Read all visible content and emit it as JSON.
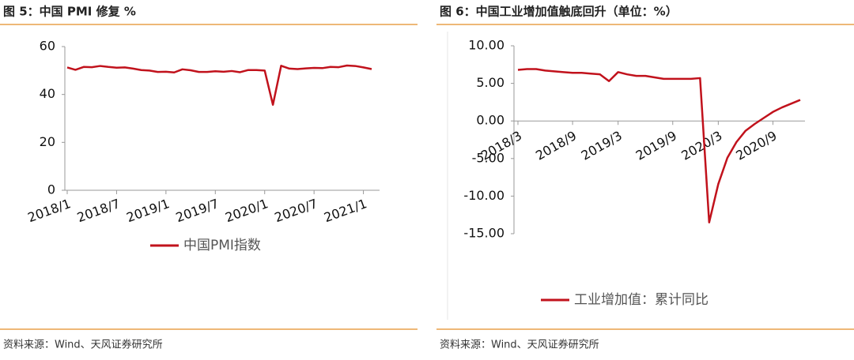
{
  "chart_data": [
    {
      "type": "line",
      "title": "图 5：中国 PMI 修复 %",
      "source": "资料来源：Wind、天风证券研究所",
      "categories": [
        "2018/1",
        null,
        null,
        null,
        null,
        null,
        "2018/7",
        null,
        null,
        null,
        null,
        null,
        "2019/1",
        null,
        null,
        null,
        null,
        null,
        "2019/7",
        null,
        null,
        null,
        null,
        null,
        "2020/1",
        null,
        null,
        null,
        null,
        null,
        "2020/7",
        null,
        null,
        null,
        null,
        null,
        "2021/1",
        null
      ],
      "series": [
        {
          "name": "中国PMI指数",
          "color": "#c1121c",
          "values": [
            51.3,
            50.3,
            51.5,
            51.4,
            51.9,
            51.5,
            51.2,
            51.3,
            50.8,
            50.2,
            50.0,
            49.4,
            49.5,
            49.2,
            50.5,
            50.1,
            49.4,
            49.4,
            49.7,
            49.5,
            49.8,
            49.3,
            50.2,
            50.2,
            50.0,
            35.7,
            52.0,
            50.8,
            50.6,
            50.9,
            51.1,
            51.0,
            51.5,
            51.4,
            52.1,
            51.9,
            51.3,
            50.6
          ]
        }
      ],
      "ylim": [
        0,
        60
      ],
      "yticks": [
        0,
        20,
        40,
        60
      ]
    },
    {
      "type": "line",
      "title": "图 6：中国工业增加值触底回升（单位：%）",
      "source": "资料来源：Wind、天风证券研究所",
      "categories": [
        "2018/3",
        null,
        null,
        null,
        null,
        null,
        "2018/9",
        null,
        null,
        null,
        null,
        "2019/3",
        null,
        null,
        null,
        null,
        null,
        "2019/9",
        null,
        null,
        null,
        null,
        "2020/3",
        null,
        null,
        null,
        null,
        null,
        "2020/9",
        null,
        null,
        null
      ],
      "series": [
        {
          "name": "工业增加值：累计同比",
          "color": "#c1121c",
          "values": [
            6.8,
            6.9,
            6.9,
            6.7,
            6.6,
            6.5,
            6.4,
            6.4,
            6.3,
            6.2,
            5.3,
            6.5,
            6.2,
            6.0,
            6.0,
            5.8,
            5.6,
            5.6,
            5.6,
            5.6,
            5.7,
            -13.5,
            -8.4,
            -4.9,
            -2.8,
            -1.3,
            -0.4,
            0.4,
            1.2,
            1.8,
            2.3,
            2.8
          ]
        }
      ],
      "ylim": [
        -15,
        10
      ],
      "yticks": [
        {
          "value": -15,
          "label": "-15.00"
        },
        {
          "value": -10,
          "label": "-10.00"
        },
        {
          "value": -5,
          "label": "-5.00"
        },
        {
          "value": 0,
          "label": "0.00"
        },
        {
          "value": 5,
          "label": "5.00"
        },
        {
          "value": 10,
          "label": "10.00"
        }
      ]
    }
  ]
}
